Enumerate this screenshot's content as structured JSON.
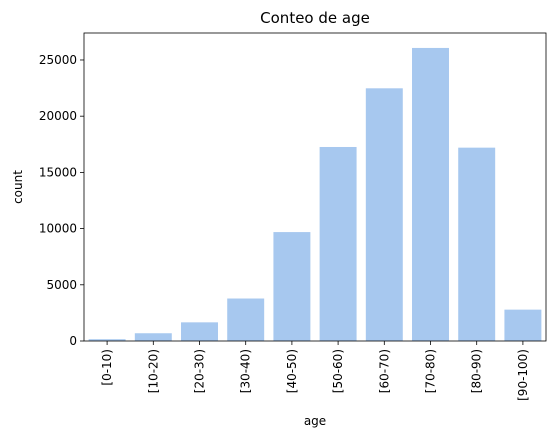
{
  "chart_data": {
    "type": "bar",
    "title": "Conteo de age",
    "xlabel": "age",
    "ylabel": "count",
    "categories": [
      "[0-10)",
      "[10-20)",
      "[20-30)",
      "[30-40)",
      "[40-50)",
      "[50-60)",
      "[60-70)",
      "[70-80)",
      "[80-90)",
      "[90-100)"
    ],
    "values": [
      160,
      690,
      1660,
      3780,
      9690,
      17260,
      22480,
      26070,
      17200,
      2790
    ],
    "ylim": [
      0,
      27400
    ],
    "yticks": [
      0,
      5000,
      10000,
      15000,
      20000,
      25000
    ],
    "bar_color": "#a7c8ef",
    "grid": false
  }
}
